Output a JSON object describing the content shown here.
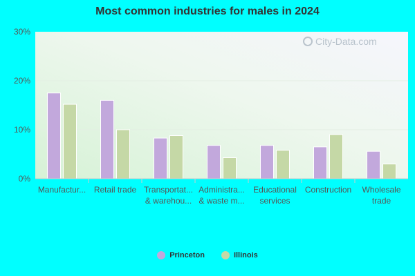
{
  "chart_data": {
    "type": "bar",
    "title": "Most common industries for males in 2024",
    "categories": [
      [
        "Manufactur..."
      ],
      [
        "Retail trade"
      ],
      [
        "Transportat...",
        "& warehou..."
      ],
      [
        "Administra...",
        "& waste m..."
      ],
      [
        "Educational",
        "services"
      ],
      [
        "Construction"
      ],
      [
        "Wholesale",
        "trade"
      ]
    ],
    "series": [
      {
        "name": "Princeton",
        "color": "#c2a8dc",
        "values": [
          17.5,
          16.0,
          8.3,
          6.8,
          6.8,
          6.5,
          5.6
        ]
      },
      {
        "name": "Illinois",
        "color": "#c5d8a6",
        "values": [
          15.2,
          10.0,
          8.8,
          4.3,
          5.8,
          9.0,
          3.0
        ]
      }
    ],
    "yticks": [
      "0%",
      "10%",
      "20%",
      "30%"
    ],
    "ylim": [
      0,
      30
    ],
    "grid": true,
    "legend_position": "bottom-center"
  },
  "watermark": "City-Data.com"
}
